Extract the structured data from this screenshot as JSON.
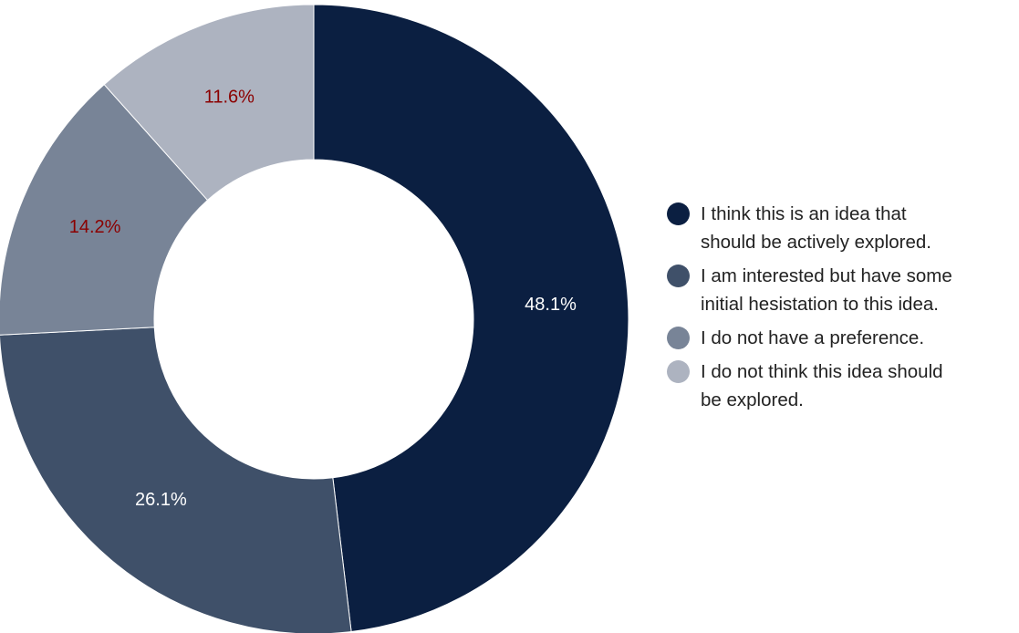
{
  "chart_data": {
    "type": "pie",
    "variant": "donut",
    "title": "",
    "slices": [
      {
        "label": "I think this is an idea that\nshould be actively explored.",
        "value": 48.1,
        "display": "48.1%",
        "color": "#0b1f41",
        "label_color": "#ffffff"
      },
      {
        "label": "I am interested but have some\ninitial hesistation to this idea.",
        "value": 26.1,
        "display": "26.1%",
        "color": "#3f5069",
        "label_color": "#ffffff"
      },
      {
        "label": "I do not have a preference.",
        "value": 14.2,
        "display": "14.2%",
        "color": "#788497",
        "label_color": "#8b0000"
      },
      {
        "label": "I do not think this idea should\nbe explored.",
        "value": 11.6,
        "display": "11.6%",
        "color": "#adb3c0",
        "label_color": "#8b0000"
      }
    ],
    "start": "top, clockwise",
    "legend_position": "right"
  }
}
